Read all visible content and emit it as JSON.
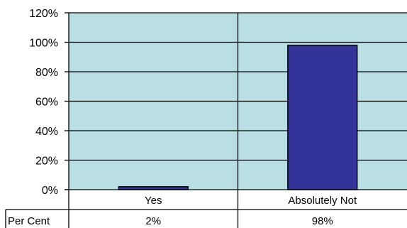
{
  "chart_data": {
    "type": "bar",
    "categories": [
      "Yes",
      "Absolutely Not"
    ],
    "series": [
      {
        "name": "Per Cent",
        "values": [
          2,
          98
        ],
        "labels": [
          "2%",
          "98%"
        ]
      }
    ],
    "ylim": [
      0,
      120
    ],
    "yticks": [
      0,
      20,
      40,
      60,
      80,
      100,
      120
    ],
    "ytick_labels": [
      "0%",
      "20%",
      "40%",
      "60%",
      "80%",
      "100%",
      "120%"
    ],
    "grid": true,
    "data_table": true,
    "colors": {
      "plot_bg": "#b9dfe4",
      "bar_fill": "#333399",
      "bar_stroke": "#000000"
    }
  }
}
